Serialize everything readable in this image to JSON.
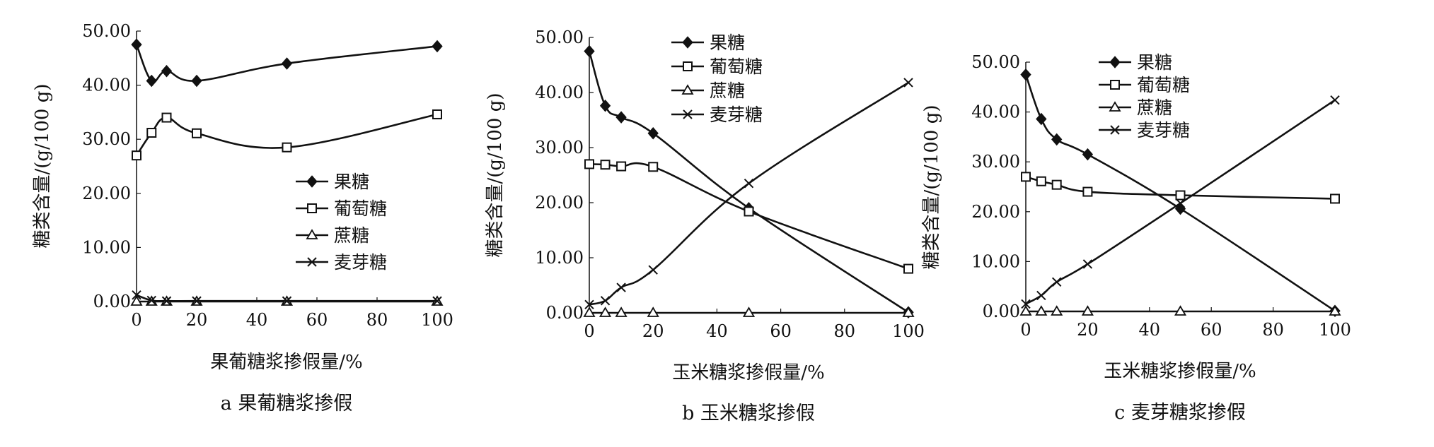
{
  "chart_data": [
    {
      "type": "line",
      "caption": "a 果葡糖浆掺假",
      "xlabel": "果葡糖浆掺假量/%",
      "ylabel": "糖类含量/(g/100 g)",
      "xlim": [
        0,
        100
      ],
      "ylim": [
        0,
        50
      ],
      "xticks": [
        "0",
        "20",
        "40",
        "60",
        "80",
        "100"
      ],
      "yticks": [
        "0.00",
        "10.00",
        "20.00",
        "30.00",
        "40.00",
        "50.00"
      ],
      "legend_position": "right",
      "x": [
        0,
        5,
        10,
        20,
        50,
        100
      ],
      "series": [
        {
          "name": "果糖",
          "marker": "diamond",
          "values": [
            47.5,
            40.8,
            42.6,
            40.8,
            44.0,
            47.2
          ]
        },
        {
          "name": "葡萄糖",
          "marker": "square",
          "values": [
            27.0,
            31.2,
            34.0,
            31.1,
            28.5,
            34.6
          ]
        },
        {
          "name": "蔗糖",
          "marker": "triangle",
          "values": [
            0.0,
            0.0,
            0.0,
            0.0,
            0.0,
            0.0
          ]
        },
        {
          "name": "麦芽糖",
          "marker": "x",
          "values": [
            1.2,
            0.2,
            0.1,
            0.1,
            0.1,
            0.1
          ]
        }
      ]
    },
    {
      "type": "line",
      "caption": "b 玉米糖浆掺假",
      "xlabel": "玉米糖浆掺假量/%",
      "ylabel": "糖类含量/(g/100 g)",
      "xlim": [
        0,
        100
      ],
      "ylim": [
        0,
        50
      ],
      "xticks": [
        "0",
        "20",
        "40",
        "60",
        "80",
        "100"
      ],
      "yticks": [
        "0.00",
        "10.00",
        "20.00",
        "30.00",
        "40.00",
        "50.00"
      ],
      "legend_position": "top-left",
      "x": [
        0,
        5,
        10,
        20,
        50,
        100
      ],
      "series": [
        {
          "name": "果糖",
          "marker": "diamond",
          "values": [
            47.5,
            37.6,
            35.5,
            32.6,
            19.0,
            0.1
          ]
        },
        {
          "name": "葡萄糖",
          "marker": "square",
          "values": [
            27.0,
            26.9,
            26.6,
            26.5,
            18.4,
            8.0
          ]
        },
        {
          "name": "蔗糖",
          "marker": "triangle",
          "values": [
            0.0,
            0.0,
            0.0,
            0.0,
            0.0,
            0.0
          ]
        },
        {
          "name": "麦芽糖",
          "marker": "x",
          "values": [
            1.5,
            2.2,
            4.6,
            7.8,
            23.5,
            41.8
          ]
        }
      ]
    },
    {
      "type": "line",
      "caption": "c 麦芽糖浆掺假",
      "xlabel": "玉米糖浆掺假量/%",
      "ylabel": "糖类含量/(g/100 g)",
      "xlim": [
        0,
        100
      ],
      "ylim": [
        0,
        50
      ],
      "xticks": [
        "0",
        "20",
        "40",
        "60",
        "80",
        "100"
      ],
      "yticks": [
        "0.00",
        "10.00",
        "20.00",
        "30.00",
        "40.00",
        "50.00"
      ],
      "legend_position": "top-left",
      "x": [
        0,
        5,
        10,
        20,
        50,
        100
      ],
      "series": [
        {
          "name": "果糖",
          "marker": "diamond",
          "values": [
            47.5,
            38.6,
            34.5,
            31.5,
            20.6,
            0.1
          ]
        },
        {
          "name": "葡萄糖",
          "marker": "square",
          "values": [
            27.0,
            26.1,
            25.4,
            24.0,
            23.3,
            22.6
          ]
        },
        {
          "name": "蔗糖",
          "marker": "triangle",
          "values": [
            0.0,
            0.0,
            0.0,
            0.0,
            0.0,
            0.0
          ]
        },
        {
          "name": "麦芽糖",
          "marker": "x",
          "values": [
            1.5,
            3.2,
            5.9,
            9.5,
            21.7,
            42.4
          ]
        }
      ]
    }
  ]
}
